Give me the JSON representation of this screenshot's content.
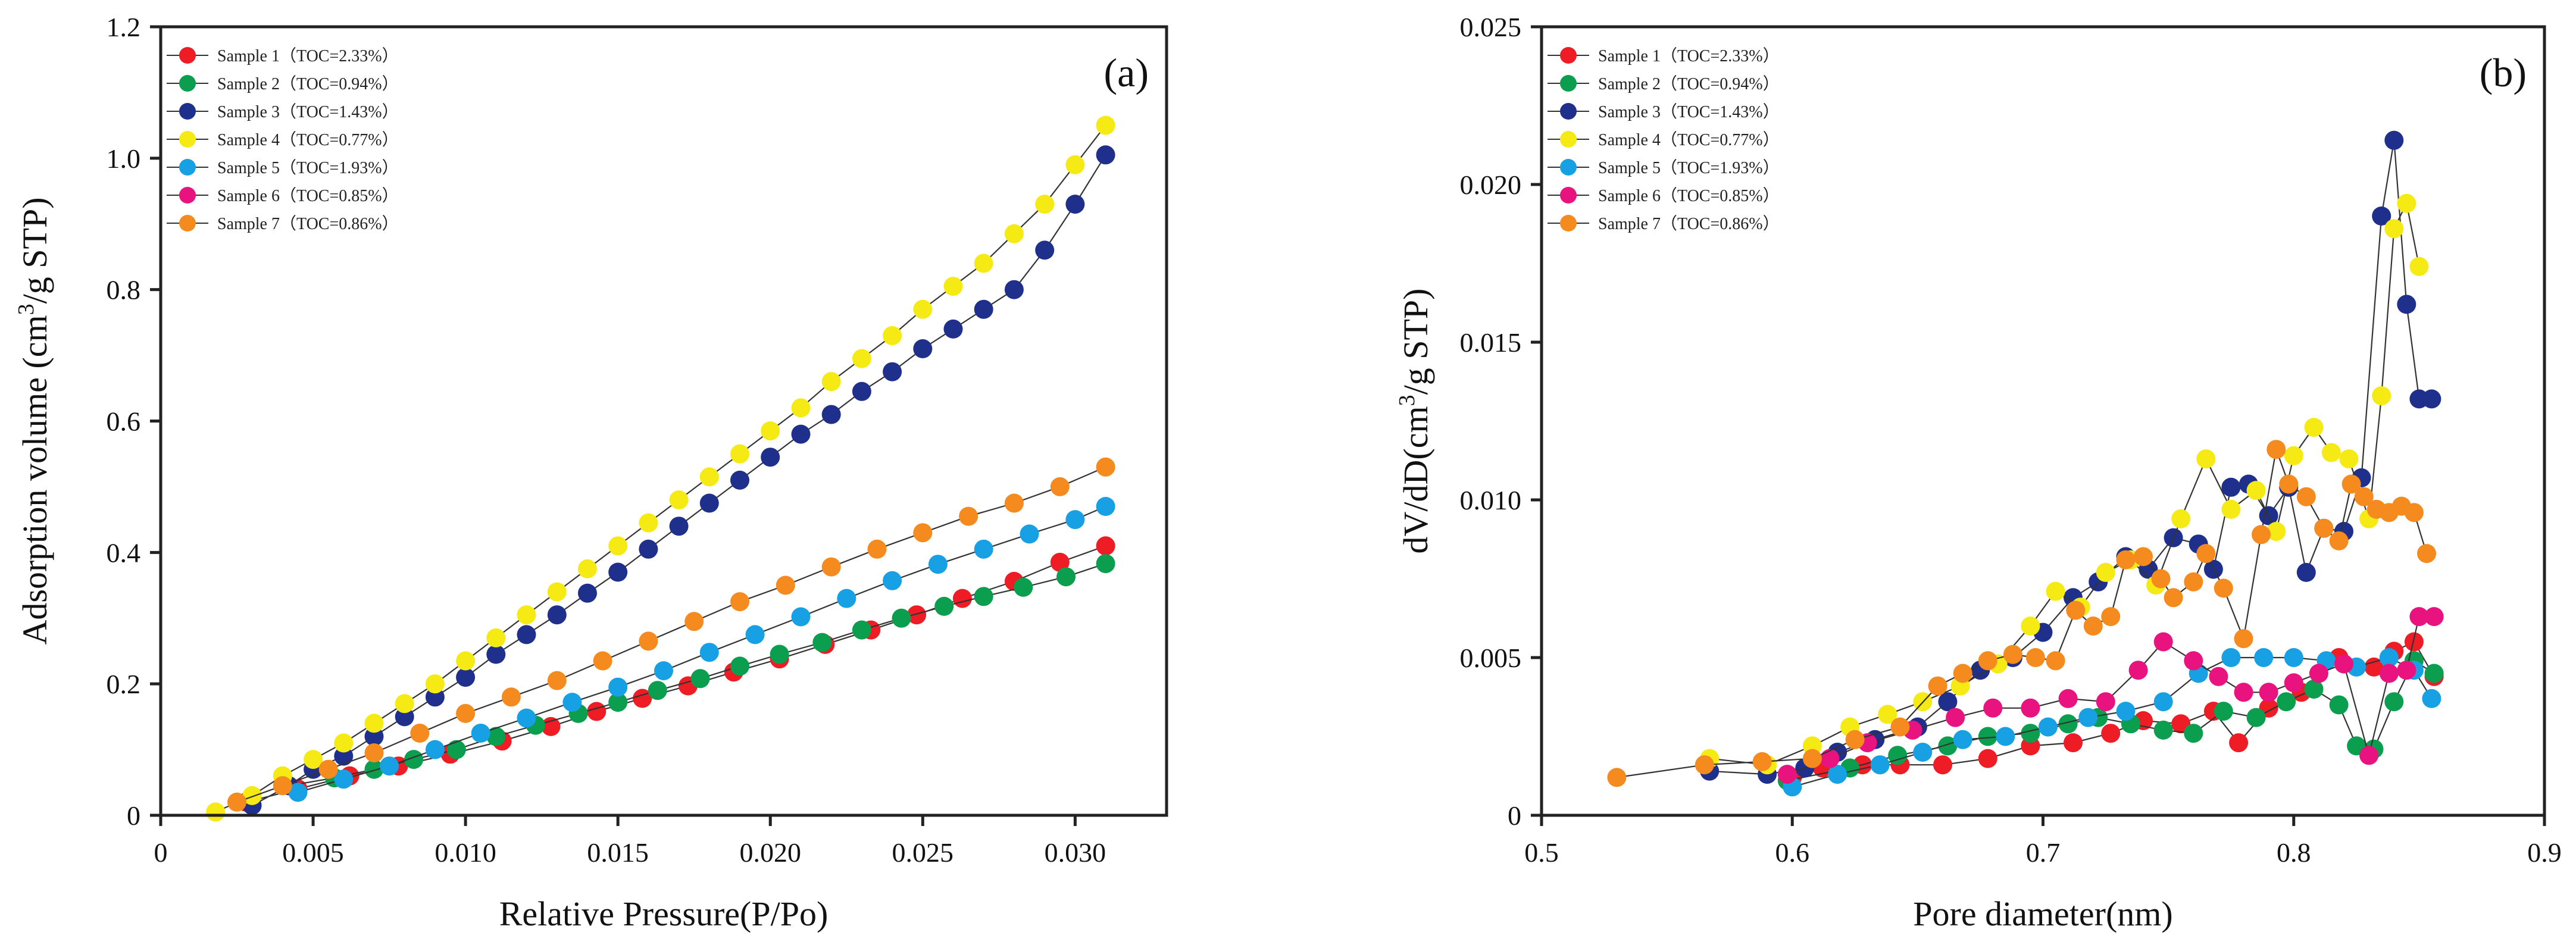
{
  "chart_data": [
    {
      "type": "scatter",
      "panel_label": "(a)",
      "title": "",
      "xlabel": "Relative Pressure(P/Po)",
      "ylabel": "Adsorption volume (cm3/g STP)",
      "ylabel_parts": {
        "pre": "Adsorption volume (cm",
        "sup": "3",
        "post": "/g STP)"
      },
      "xlim": [
        0,
        0.033
      ],
      "ylim": [
        0,
        1.2
      ],
      "xticks": [
        0,
        0.005,
        0.01,
        0.015,
        0.02,
        0.025,
        0.03
      ],
      "xtick_labels": [
        "0",
        "0.005",
        "0.010",
        "0.015",
        "0.020",
        "0.025",
        "0.030"
      ],
      "yticks": [
        0,
        0.2,
        0.4,
        0.6,
        0.8,
        1.0,
        1.2
      ],
      "ytick_labels": [
        "0",
        "0.2",
        "0.4",
        "0.6",
        "0.8",
        "1.0",
        "1.2"
      ],
      "legend_position": "top-left",
      "series": [
        {
          "name": "Sample 1（TOC=2.33%）",
          "color": "#ee1c25",
          "x": [
            0.0028,
            0.0045,
            0.0062,
            0.0078,
            0.0095,
            0.0112,
            0.0128,
            0.0143,
            0.0158,
            0.0173,
            0.0188,
            0.0203,
            0.0218,
            0.0233,
            0.0248,
            0.0263,
            0.028,
            0.0295,
            0.031
          ],
          "y": [
            0.02,
            0.04,
            0.06,
            0.075,
            0.093,
            0.113,
            0.135,
            0.158,
            0.178,
            0.197,
            0.218,
            0.238,
            0.26,
            0.282,
            0.305,
            0.33,
            0.356,
            0.385,
            0.41
          ]
        },
        {
          "name": "Sample 2（TOC=0.94%）",
          "color": "#0a9e4e",
          "x": [
            0.0042,
            0.0057,
            0.007,
            0.0083,
            0.0097,
            0.011,
            0.0123,
            0.0137,
            0.015,
            0.0163,
            0.0177,
            0.019,
            0.0203,
            0.0217,
            0.023,
            0.0243,
            0.0257,
            0.027,
            0.0283,
            0.0297,
            0.031
          ],
          "y": [
            0.045,
            0.057,
            0.07,
            0.085,
            0.1,
            0.12,
            0.137,
            0.155,
            0.172,
            0.19,
            0.208,
            0.227,
            0.245,
            0.263,
            0.282,
            0.3,
            0.318,
            0.333,
            0.347,
            0.363,
            0.383
          ]
        },
        {
          "name": "Sample 3（TOC=1.43%）",
          "color": "#1f2f8c",
          "x": [
            0.003,
            0.0042,
            0.005,
            0.006,
            0.007,
            0.008,
            0.009,
            0.01,
            0.011,
            0.012,
            0.013,
            0.014,
            0.015,
            0.016,
            0.017,
            0.018,
            0.019,
            0.02,
            0.021,
            0.022,
            0.023,
            0.024,
            0.025,
            0.026,
            0.027,
            0.028,
            0.029,
            0.03,
            0.031
          ],
          "y": [
            0.015,
            0.045,
            0.07,
            0.09,
            0.12,
            0.15,
            0.18,
            0.21,
            0.245,
            0.275,
            0.305,
            0.338,
            0.37,
            0.405,
            0.44,
            0.475,
            0.51,
            0.545,
            0.58,
            0.61,
            0.645,
            0.675,
            0.71,
            0.74,
            0.77,
            0.8,
            0.86,
            0.93,
            1.005
          ]
        },
        {
          "name": "Sample 4（TOC=0.77%）",
          "color": "#f5ea14",
          "x": [
            0.0018,
            0.003,
            0.004,
            0.005,
            0.006,
            0.007,
            0.008,
            0.009,
            0.01,
            0.011,
            0.012,
            0.013,
            0.014,
            0.015,
            0.016,
            0.017,
            0.018,
            0.019,
            0.02,
            0.021,
            0.022,
            0.023,
            0.024,
            0.025,
            0.026,
            0.027,
            0.028,
            0.029,
            0.03,
            0.031
          ],
          "y": [
            0.005,
            0.03,
            0.06,
            0.085,
            0.11,
            0.14,
            0.17,
            0.2,
            0.235,
            0.27,
            0.305,
            0.34,
            0.375,
            0.41,
            0.445,
            0.48,
            0.515,
            0.55,
            0.585,
            0.62,
            0.66,
            0.695,
            0.73,
            0.77,
            0.805,
            0.84,
            0.885,
            0.93,
            0.99,
            1.05
          ]
        },
        {
          "name": "Sample 5（TOC=1.93%）",
          "color": "#18a0e4",
          "x": [
            0.0045,
            0.006,
            0.0075,
            0.009,
            0.0105,
            0.012,
            0.0135,
            0.015,
            0.0165,
            0.018,
            0.0195,
            0.021,
            0.0225,
            0.024,
            0.0255,
            0.027,
            0.0285,
            0.03,
            0.031
          ],
          "y": [
            0.035,
            0.055,
            0.075,
            0.1,
            0.125,
            0.148,
            0.172,
            0.195,
            0.22,
            0.248,
            0.275,
            0.302,
            0.33,
            0.357,
            0.382,
            0.405,
            0.428,
            0.45,
            0.47
          ]
        },
        {
          "name": "Sample 6（TOC=0.85%）",
          "color": "#e8137f",
          "x": [],
          "y": []
        },
        {
          "name": "Sample 7（TOC=0.86%）",
          "color": "#f58a1f",
          "x": [
            0.0025,
            0.004,
            0.0055,
            0.007,
            0.0085,
            0.01,
            0.0115,
            0.013,
            0.0145,
            0.016,
            0.0175,
            0.019,
            0.0205,
            0.022,
            0.0235,
            0.025,
            0.0265,
            0.028,
            0.0295,
            0.031
          ],
          "y": [
            0.02,
            0.045,
            0.07,
            0.095,
            0.125,
            0.155,
            0.18,
            0.205,
            0.235,
            0.265,
            0.295,
            0.325,
            0.35,
            0.378,
            0.405,
            0.43,
            0.455,
            0.475,
            0.5,
            0.53
          ]
        }
      ]
    },
    {
      "type": "line",
      "panel_label": "(b)",
      "title": "",
      "xlabel": "Pore diameter(nm)",
      "ylabel": "dV/dD(cm3/g STP)",
      "ylabel_parts": {
        "pre": "dV/dD(cm",
        "sup": "3",
        "post": "/g STP)"
      },
      "xlim": [
        0.5,
        0.9
      ],
      "ylim": [
        0,
        0.025
      ],
      "xticks": [
        0.5,
        0.6,
        0.7,
        0.8,
        0.9
      ],
      "xtick_labels": [
        "0.5",
        "0.6",
        "0.7",
        "0.8",
        "0.9"
      ],
      "yticks": [
        0,
        0.005,
        0.01,
        0.015,
        0.02,
        0.025
      ],
      "ytick_labels": [
        "0",
        "0.005",
        "0.010",
        "0.015",
        "0.020",
        "0.025"
      ],
      "legend_position": "top-left",
      "series": [
        {
          "name": "Sample 1（TOC=2.33%）",
          "color": "#ee1c25",
          "x": [
            0.6,
            0.612,
            0.628,
            0.643,
            0.66,
            0.678,
            0.695,
            0.712,
            0.727,
            0.74,
            0.755,
            0.768,
            0.778,
            0.79,
            0.803,
            0.818,
            0.832,
            0.84,
            0.848,
            0.856
          ],
          "y": [
            0.0012,
            0.0015,
            0.0016,
            0.0016,
            0.0016,
            0.0018,
            0.0022,
            0.0023,
            0.0026,
            0.003,
            0.0029,
            0.0033,
            0.0023,
            0.0034,
            0.0039,
            0.005,
            0.0047,
            0.0052,
            0.0055,
            0.0044
          ]
        },
        {
          "name": "Sample 2（TOC=0.94%）",
          "color": "#0a9e4e",
          "x": [
            0.598,
            0.623,
            0.642,
            0.662,
            0.678,
            0.695,
            0.71,
            0.722,
            0.735,
            0.748,
            0.76,
            0.772,
            0.785,
            0.797,
            0.808,
            0.818,
            0.825,
            0.832,
            0.84,
            0.848,
            0.856
          ],
          "y": [
            0.0011,
            0.0015,
            0.0019,
            0.0022,
            0.0025,
            0.0026,
            0.0029,
            0.0031,
            0.0029,
            0.0027,
            0.0026,
            0.0033,
            0.0031,
            0.0036,
            0.004,
            0.0035,
            0.0022,
            0.0021,
            0.0036,
            0.0049,
            0.0045
          ]
        },
        {
          "name": "Sample 3（TOC=1.43%）",
          "color": "#1f2f8c",
          "x": [
            0.567,
            0.59,
            0.605,
            0.618,
            0.633,
            0.65,
            0.662,
            0.675,
            0.688,
            0.7,
            0.712,
            0.722,
            0.733,
            0.742,
            0.752,
            0.762,
            0.768,
            0.775,
            0.782,
            0.79,
            0.798,
            0.805,
            0.812,
            0.82,
            0.827,
            0.835,
            0.84,
            0.845,
            0.85,
            0.855
          ],
          "y": [
            0.0014,
            0.0013,
            0.0015,
            0.002,
            0.0024,
            0.0028,
            0.0036,
            0.0046,
            0.005,
            0.0058,
            0.0069,
            0.0074,
            0.0082,
            0.0078,
            0.0088,
            0.0086,
            0.0078,
            0.0104,
            0.0105,
            0.0095,
            0.0104,
            0.0077,
            0.0091,
            0.009,
            0.0107,
            0.019,
            0.0214,
            0.0162,
            0.0132,
            0.0132
          ]
        },
        {
          "name": "Sample 4（TOC=0.77%）",
          "color": "#f5ea14",
          "x": [
            0.567,
            0.59,
            0.608,
            0.623,
            0.638,
            0.652,
            0.667,
            0.682,
            0.695,
            0.705,
            0.715,
            0.725,
            0.735,
            0.745,
            0.755,
            0.765,
            0.775,
            0.785,
            0.793,
            0.8,
            0.808,
            0.815,
            0.822,
            0.83,
            0.835,
            0.84,
            0.845,
            0.85
          ],
          "y": [
            0.0018,
            0.0016,
            0.0022,
            0.0028,
            0.0032,
            0.0036,
            0.0041,
            0.0048,
            0.006,
            0.0071,
            0.0066,
            0.0077,
            0.0081,
            0.0073,
            0.0094,
            0.0113,
            0.0097,
            0.0103,
            0.009,
            0.0114,
            0.0123,
            0.0115,
            0.0113,
            0.0094,
            0.0133,
            0.0186,
            0.0194,
            0.0174
          ]
        },
        {
          "name": "Sample 5（TOC=1.93%）",
          "color": "#18a0e4",
          "x": [
            0.6,
            0.618,
            0.635,
            0.652,
            0.668,
            0.685,
            0.702,
            0.718,
            0.733,
            0.748,
            0.762,
            0.775,
            0.788,
            0.8,
            0.813,
            0.825,
            0.838,
            0.848,
            0.855
          ],
          "y": [
            0.0009,
            0.0013,
            0.0016,
            0.002,
            0.0024,
            0.0025,
            0.0028,
            0.0031,
            0.0033,
            0.0036,
            0.0045,
            0.005,
            0.005,
            0.005,
            0.0049,
            0.0047,
            0.005,
            0.0046,
            0.0037
          ]
        },
        {
          "name": "Sample 6（TOC=0.85%）",
          "color": "#e8137f",
          "x": [
            0.598,
            0.615,
            0.63,
            0.648,
            0.665,
            0.68,
            0.695,
            0.71,
            0.725,
            0.738,
            0.748,
            0.76,
            0.77,
            0.78,
            0.79,
            0.8,
            0.81,
            0.82,
            0.83,
            0.838,
            0.845,
            0.85,
            0.856
          ],
          "y": [
            0.0013,
            0.0018,
            0.0023,
            0.0027,
            0.0031,
            0.0034,
            0.0034,
            0.0037,
            0.0036,
            0.0046,
            0.0055,
            0.0049,
            0.0044,
            0.0039,
            0.0039,
            0.0042,
            0.0045,
            0.0048,
            0.0019,
            0.0045,
            0.0046,
            0.0063,
            0.0063
          ]
        },
        {
          "name": "Sample 7（TOC=0.86%）",
          "color": "#f58a1f",
          "x": [
            0.53,
            0.565,
            0.588,
            0.608,
            0.625,
            0.643,
            0.658,
            0.668,
            0.678,
            0.688,
            0.697,
            0.705,
            0.713,
            0.72,
            0.727,
            0.733,
            0.74,
            0.747,
            0.752,
            0.76,
            0.765,
            0.772,
            0.78,
            0.787,
            0.793,
            0.798,
            0.805,
            0.812,
            0.818,
            0.823,
            0.828,
            0.833,
            0.838,
            0.843,
            0.848,
            0.853
          ],
          "y": [
            0.0012,
            0.0016,
            0.0017,
            0.0018,
            0.0024,
            0.0028,
            0.0041,
            0.0045,
            0.0049,
            0.0051,
            0.005,
            0.0049,
            0.0065,
            0.006,
            0.0063,
            0.0081,
            0.0082,
            0.0075,
            0.0069,
            0.0074,
            0.0083,
            0.0072,
            0.0056,
            0.0089,
            0.0116,
            0.0105,
            0.0101,
            0.0091,
            0.0087,
            0.0105,
            0.0101,
            0.0097,
            0.0096,
            0.0098,
            0.0096,
            0.0083
          ]
        }
      ]
    }
  ]
}
